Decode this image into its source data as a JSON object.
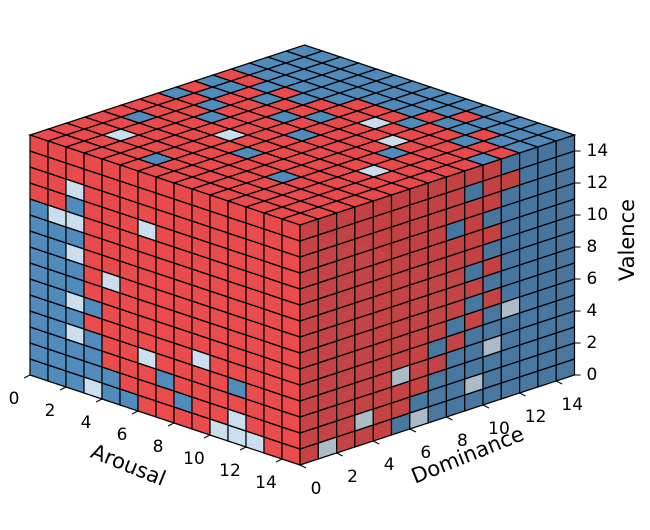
{
  "chart_data": {
    "type": "voxel",
    "xlabel": "Arousal",
    "ylabel": "Dominance",
    "zlabel": "Valence",
    "xlim": [
      0,
      15
    ],
    "ylim": [
      0,
      15
    ],
    "zlim": [
      0,
      15
    ],
    "xticks": [
      0,
      2,
      4,
      6,
      8,
      10,
      12,
      14
    ],
    "yticks": [
      0,
      2,
      4,
      6,
      8,
      10,
      12,
      14
    ],
    "zticks": [
      0,
      2,
      4,
      6,
      8,
      10,
      12,
      14
    ],
    "colors": [
      "#3f7fb5",
      "#e8383a",
      "#c5dbec"
    ],
    "top": [
      [
        1,
        1,
        1,
        1,
        1,
        1,
        1,
        0,
        1,
        0,
        1,
        0,
        0,
        0,
        0
      ],
      [
        1,
        1,
        1,
        1,
        0,
        1,
        1,
        1,
        0,
        0,
        1,
        0,
        0,
        0,
        0
      ],
      [
        1,
        1,
        2,
        1,
        1,
        1,
        1,
        0,
        1,
        1,
        0,
        0,
        0,
        0,
        0
      ],
      [
        1,
        1,
        1,
        1,
        1,
        1,
        0,
        1,
        1,
        0,
        1,
        0,
        0,
        0,
        0
      ],
      [
        1,
        1,
        1,
        1,
        1,
        1,
        1,
        1,
        1,
        1,
        0,
        0,
        0,
        0,
        0
      ],
      [
        1,
        0,
        1,
        1,
        1,
        2,
        1,
        1,
        0,
        1,
        1,
        0,
        0,
        0,
        0
      ],
      [
        1,
        1,
        1,
        1,
        1,
        1,
        1,
        1,
        1,
        0,
        1,
        1,
        0,
        0,
        0
      ],
      [
        1,
        1,
        1,
        1,
        0,
        1,
        1,
        0,
        1,
        1,
        1,
        1,
        0,
        0,
        0
      ],
      [
        1,
        1,
        1,
        1,
        1,
        1,
        1,
        1,
        1,
        1,
        2,
        1,
        0,
        0,
        0
      ],
      [
        1,
        1,
        1,
        1,
        1,
        1,
        1,
        1,
        1,
        1,
        1,
        0,
        1,
        0,
        0
      ],
      [
        1,
        1,
        1,
        0,
        1,
        1,
        1,
        1,
        1,
        2,
        1,
        1,
        0,
        1,
        0
      ],
      [
        1,
        1,
        1,
        1,
        1,
        1,
        1,
        1,
        0,
        1,
        1,
        1,
        0,
        0,
        0
      ],
      [
        1,
        1,
        1,
        1,
        1,
        1,
        2,
        1,
        1,
        1,
        1,
        0,
        1,
        0,
        0
      ],
      [
        1,
        1,
        1,
        1,
        1,
        1,
        1,
        1,
        1,
        1,
        1,
        1,
        0,
        0,
        0
      ],
      [
        1,
        1,
        1,
        1,
        1,
        1,
        1,
        1,
        1,
        1,
        0,
        1,
        0,
        0,
        0
      ]
    ],
    "left": [
      [
        0,
        0,
        0,
        2,
        0,
        0,
        1,
        1,
        1,
        1,
        2,
        2,
        2,
        1,
        1
      ],
      [
        0,
        0,
        0,
        0,
        0,
        1,
        1,
        1,
        0,
        1,
        1,
        2,
        1,
        1,
        1
      ],
      [
        0,
        0,
        0,
        0,
        1,
        1,
        1,
        0,
        1,
        1,
        1,
        1,
        1,
        1,
        1
      ],
      [
        0,
        0,
        2,
        0,
        1,
        1,
        2,
        1,
        1,
        1,
        1,
        0,
        1,
        1,
        1
      ],
      [
        0,
        0,
        0,
        1,
        1,
        1,
        1,
        1,
        1,
        2,
        1,
        1,
        1,
        1,
        1
      ],
      [
        0,
        0,
        2,
        0,
        1,
        1,
        1,
        1,
        1,
        1,
        1,
        1,
        1,
        1,
        1
      ],
      [
        0,
        0,
        0,
        1,
        1,
        1,
        1,
        1,
        1,
        1,
        1,
        1,
        1,
        1,
        1
      ],
      [
        0,
        0,
        0,
        1,
        2,
        1,
        1,
        1,
        1,
        1,
        1,
        1,
        1,
        1,
        1
      ],
      [
        0,
        0,
        2,
        1,
        1,
        1,
        1,
        1,
        1,
        1,
        1,
        1,
        1,
        1,
        1
      ],
      [
        0,
        0,
        0,
        1,
        1,
        1,
        1,
        1,
        1,
        1,
        1,
        1,
        1,
        1,
        1
      ],
      [
        0,
        2,
        2,
        1,
        1,
        1,
        1,
        1,
        1,
        1,
        1,
        1,
        1,
        1,
        1
      ],
      [
        1,
        1,
        0,
        1,
        1,
        1,
        2,
        1,
        1,
        1,
        1,
        1,
        1,
        1,
        1
      ],
      [
        1,
        1,
        2,
        1,
        1,
        1,
        1,
        1,
        1,
        1,
        1,
        1,
        1,
        1,
        1
      ],
      [
        1,
        1,
        1,
        1,
        1,
        1,
        1,
        1,
        1,
        1,
        1,
        1,
        1,
        1,
        1
      ],
      [
        1,
        1,
        1,
        1,
        1,
        1,
        1,
        1,
        1,
        1,
        1,
        1,
        1,
        1,
        1
      ]
    ],
    "right": [
      [
        1,
        2,
        1,
        1,
        1,
        0,
        2,
        0,
        0,
        0,
        0,
        0,
        0,
        0,
        0
      ],
      [
        1,
        1,
        1,
        2,
        1,
        1,
        0,
        0,
        0,
        2,
        0,
        0,
        0,
        0,
        0
      ],
      [
        1,
        1,
        1,
        1,
        1,
        1,
        1,
        0,
        0,
        0,
        0,
        0,
        0,
        0,
        0
      ],
      [
        1,
        1,
        1,
        1,
        1,
        2,
        1,
        1,
        0,
        0,
        2,
        0,
        0,
        0,
        0
      ],
      [
        1,
        1,
        1,
        1,
        1,
        1,
        1,
        0,
        1,
        0,
        0,
        0,
        0,
        0,
        0
      ],
      [
        1,
        1,
        1,
        1,
        1,
        1,
        1,
        1,
        0,
        1,
        0,
        2,
        0,
        0,
        0
      ],
      [
        1,
        1,
        1,
        1,
        1,
        1,
        1,
        1,
        1,
        0,
        1,
        0,
        0,
        0,
        0
      ],
      [
        1,
        1,
        1,
        1,
        1,
        1,
        1,
        1,
        1,
        1,
        0,
        0,
        0,
        0,
        0
      ],
      [
        1,
        1,
        1,
        1,
        1,
        1,
        1,
        1,
        1,
        0,
        1,
        0,
        0,
        0,
        0
      ],
      [
        1,
        1,
        1,
        1,
        1,
        1,
        1,
        1,
        1,
        1,
        0,
        0,
        0,
        0,
        0
      ],
      [
        1,
        1,
        1,
        1,
        1,
        1,
        1,
        1,
        1,
        1,
        1,
        0,
        0,
        0,
        0
      ],
      [
        1,
        1,
        1,
        1,
        1,
        1,
        1,
        1,
        0,
        1,
        0,
        0,
        0,
        0,
        0
      ],
      [
        1,
        1,
        1,
        1,
        1,
        1,
        1,
        1,
        1,
        1,
        1,
        0,
        0,
        0,
        0
      ],
      [
        1,
        1,
        1,
        1,
        1,
        1,
        1,
        1,
        1,
        0,
        1,
        1,
        0,
        0,
        0
      ],
      [
        1,
        1,
        1,
        1,
        1,
        1,
        1,
        1,
        1,
        1,
        1,
        0,
        0,
        0,
        0
      ]
    ]
  }
}
